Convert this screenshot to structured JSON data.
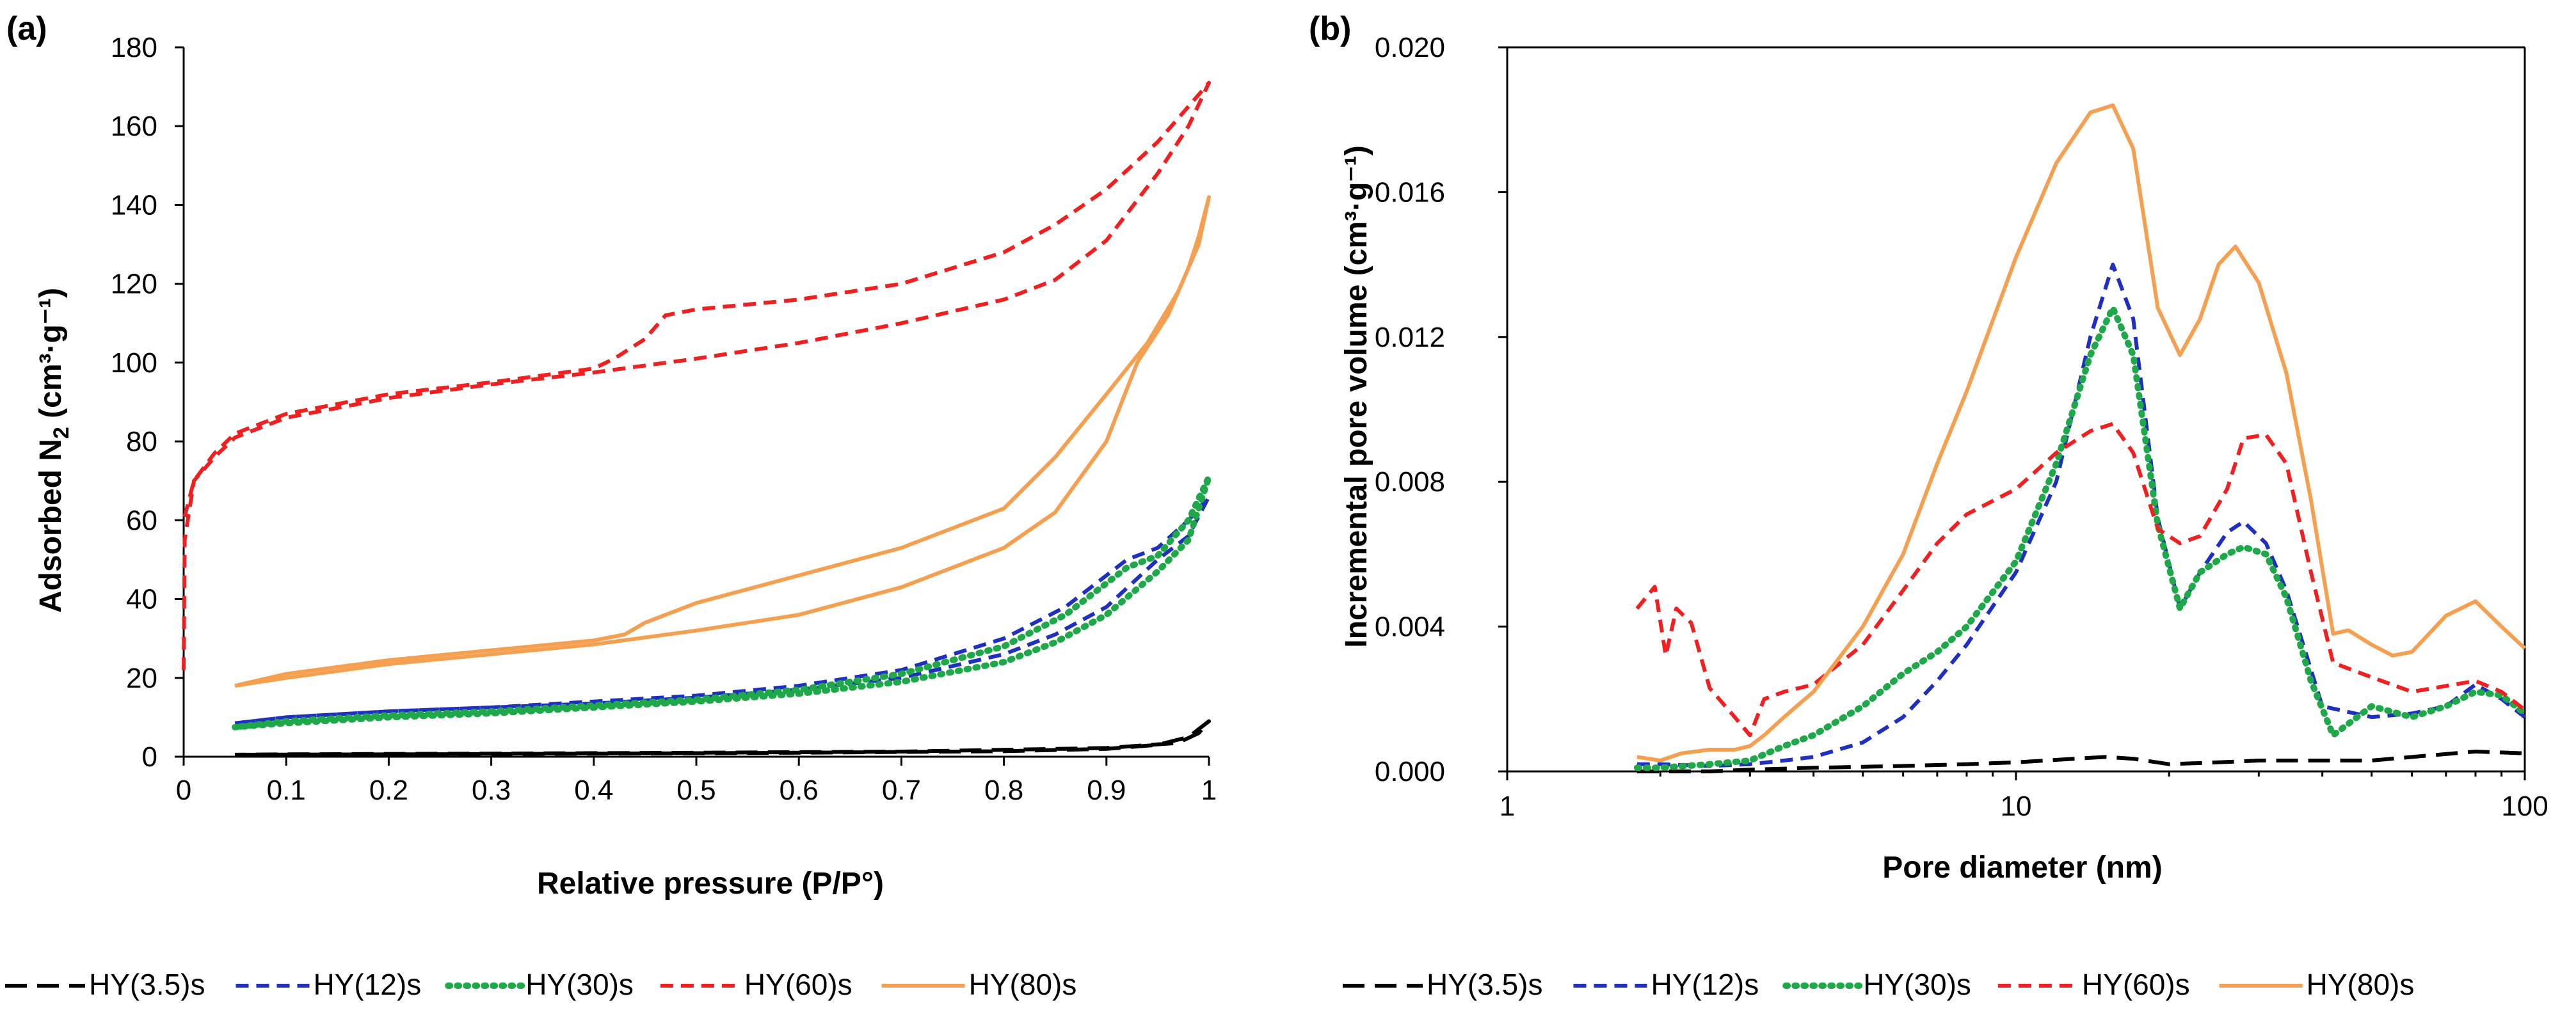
{
  "series_styles": [
    {
      "name": "HY(3.5)s",
      "color": "#000000",
      "dash": "long-dash"
    },
    {
      "name": "HY(12)s",
      "color": "#1f2fbf",
      "dash": "dash"
    },
    {
      "name": "HY(30)s",
      "color": "#1fa84a",
      "dash": "dot"
    },
    {
      "name": "HY(60)s",
      "color": "#f02020",
      "dash": "dash"
    },
    {
      "name": "HY(80)s",
      "color": "#f4a050",
      "dash": "solid"
    }
  ],
  "chart_data": [
    {
      "panel_label": "(a)",
      "type": "line",
      "title": "",
      "xlabel": "Relative pressure (P/P°)",
      "ylabel_main": "Adsorbed N",
      "ylabel_sub": "2",
      "ylabel_unit": " (cm³·g⁻¹)",
      "xlim": [
        0,
        1
      ],
      "ylim": [
        0,
        180
      ],
      "xticks": [
        0,
        0.1,
        0.2,
        0.3,
        0.4,
        0.5,
        0.6,
        0.7,
        0.8,
        0.9,
        1
      ],
      "xtick_labels": [
        "0",
        "0.1",
        "0.2",
        "0.3",
        "0.4",
        "0.5",
        "0.6",
        "0.7",
        "0.8",
        "0.9",
        "1"
      ],
      "yticks": [
        0,
        20,
        40,
        60,
        80,
        100,
        120,
        140,
        160,
        180
      ],
      "ytick_labels": [
        "0",
        "20",
        "40",
        "60",
        "80",
        "100",
        "120",
        "140",
        "160",
        "180"
      ],
      "legend_position": "bottom",
      "series": [
        {
          "name": "HY(3.5)s",
          "x": [
            0.05,
            0.2,
            0.4,
            0.6,
            0.8,
            0.9,
            0.95,
            0.98,
            0.99,
            1.0,
            0.99,
            0.97,
            0.9,
            0.7,
            0.5,
            0.3,
            0.1,
            0.05
          ],
          "y": [
            0.5,
            0.6,
            0.8,
            1.0,
            1.4,
            2.0,
            3.0,
            5.0,
            7.0,
            9.0,
            6.0,
            3.5,
            2.2,
            1.3,
            1.0,
            0.8,
            0.6,
            0.5
          ]
        },
        {
          "name": "HY(12)s",
          "x": [
            0.05,
            0.1,
            0.2,
            0.3,
            0.4,
            0.5,
            0.6,
            0.7,
            0.8,
            0.85,
            0.9,
            0.95,
            0.98,
            1.0,
            0.98,
            0.95,
            0.92,
            0.9,
            0.86,
            0.8,
            0.7,
            0.6,
            0.5,
            0.4,
            0.3,
            0.2,
            0.1,
            0.05
          ],
          "y": [
            8.5,
            10,
            11.5,
            12.5,
            13.5,
            15,
            17,
            20,
            26,
            31,
            38,
            50,
            56,
            66,
            60,
            53,
            50,
            46,
            38,
            30,
            22,
            18,
            15.5,
            14,
            12.5,
            11.5,
            10,
            8.5
          ]
        },
        {
          "name": "HY(30)s",
          "x": [
            0.05,
            0.1,
            0.2,
            0.3,
            0.4,
            0.5,
            0.6,
            0.7,
            0.8,
            0.85,
            0.9,
            0.95,
            0.98,
            1.0,
            0.98,
            0.95,
            0.92,
            0.9,
            0.86,
            0.8,
            0.7,
            0.6,
            0.5,
            0.4,
            0.3,
            0.2,
            0.1,
            0.05
          ],
          "y": [
            7.5,
            8.5,
            10,
            11,
            12.5,
            14,
            16,
            19,
            24,
            29,
            36,
            47,
            55,
            71,
            60,
            51,
            48,
            44,
            36,
            28,
            21,
            17,
            14.5,
            13,
            11.5,
            10.5,
            9,
            7.5
          ]
        },
        {
          "name": "HY(60)s",
          "x": [
            0,
            0.001,
            0.01,
            0.03,
            0.05,
            0.1,
            0.2,
            0.3,
            0.4,
            0.5,
            0.6,
            0.7,
            0.8,
            0.85,
            0.9,
            0.95,
            0.98,
            1.0,
            0.98,
            0.95,
            0.9,
            0.85,
            0.8,
            0.7,
            0.6,
            0.5,
            0.47,
            0.45,
            0.42,
            0.4,
            0.3,
            0.2,
            0.1,
            0.05,
            0.03,
            0.01,
            0.0
          ],
          "y": [
            22,
            55,
            70,
            76,
            81,
            86,
            91,
            94.5,
            97.5,
            101,
            105,
            110,
            116,
            121,
            131,
            148,
            160,
            171,
            165,
            156,
            144,
            135,
            128,
            120,
            116,
            113.5,
            112,
            106,
            101,
            98.5,
            95,
            92,
            87,
            82,
            77,
            70,
            60
          ]
        },
        {
          "name": "HY(80)s",
          "x": [
            0.05,
            0.1,
            0.2,
            0.3,
            0.4,
            0.5,
            0.6,
            0.7,
            0.8,
            0.85,
            0.9,
            0.93,
            0.96,
            0.98,
            0.99,
            1.0,
            0.99,
            0.97,
            0.94,
            0.9,
            0.85,
            0.8,
            0.7,
            0.6,
            0.5,
            0.47,
            0.45,
            0.43,
            0.4,
            0.3,
            0.2,
            0.1,
            0.05
          ],
          "y": [
            18,
            20,
            23.5,
            26,
            28.5,
            32,
            36,
            43,
            53,
            62,
            80,
            100,
            112,
            124,
            132,
            142,
            130,
            118,
            105,
            92,
            76,
            63,
            53,
            46,
            39,
            36,
            34,
            31,
            29.5,
            27,
            24.5,
            21,
            18
          ]
        }
      ]
    },
    {
      "panel_label": "(b)",
      "type": "line",
      "title": "",
      "xscale": "log",
      "xlabel": "Pore diameter (nm)",
      "ylabel": "Incremental pore volume (cm³·g⁻¹)",
      "xlim": [
        1,
        100
      ],
      "ylim": [
        0,
        0.02
      ],
      "xticks": [
        1,
        10,
        100
      ],
      "xtick_labels": [
        "1",
        "10",
        "100"
      ],
      "yticks": [
        0,
        0.004,
        0.008,
        0.012,
        0.016,
        0.02
      ],
      "ytick_labels": [
        "0.000",
        "0.004",
        "0.008",
        "0.012",
        "0.016",
        "0.020"
      ],
      "legend_position": "bottom",
      "series": [
        {
          "name": "HY(3.5)s",
          "x": [
            1.8,
            2,
            2.5,
            3,
            4,
            6,
            8,
            10,
            13,
            15,
            17,
            20,
            25,
            30,
            40,
            50,
            60,
            80,
            100
          ],
          "y": [
            0.0,
            0.0,
            0.0,
            5e-05,
            0.0001,
            0.00015,
            0.0002,
            0.00025,
            0.00035,
            0.0004,
            0.00035,
            0.0002,
            0.00025,
            0.0003,
            0.0003,
            0.0003,
            0.0004,
            0.00055,
            0.0005
          ]
        },
        {
          "name": "HY(12)s",
          "x": [
            1.8,
            2,
            2.5,
            3,
            3.5,
            4,
            5,
            6,
            7,
            8,
            10,
            12,
            14,
            15.5,
            17,
            19,
            21,
            23,
            26,
            28,
            31,
            34,
            40,
            50,
            60,
            70,
            80,
            90,
            100
          ],
          "y": [
            0.0002,
            0.0002,
            0.00015,
            0.0002,
            0.0003,
            0.0004,
            0.0008,
            0.0015,
            0.0025,
            0.0035,
            0.0055,
            0.008,
            0.012,
            0.014,
            0.0125,
            0.007,
            0.0045,
            0.0055,
            0.0066,
            0.0069,
            0.0063,
            0.005,
            0.0018,
            0.0015,
            0.0016,
            0.0018,
            0.0024,
            0.002,
            0.0015
          ]
        },
        {
          "name": "HY(30)s",
          "x": [
            1.8,
            2,
            2.5,
            3,
            3.5,
            4,
            5,
            6,
            7,
            8,
            10,
            12,
            14,
            15.5,
            17,
            19,
            21,
            23,
            26,
            28,
            31,
            34,
            38,
            42,
            50,
            60,
            70,
            80,
            90,
            100
          ],
          "y": [
            0.0001,
            0.0001,
            0.0002,
            0.0003,
            0.0007,
            0.001,
            0.0018,
            0.0027,
            0.0033,
            0.004,
            0.0058,
            0.0085,
            0.0115,
            0.0128,
            0.0115,
            0.0068,
            0.0045,
            0.0055,
            0.006,
            0.0062,
            0.006,
            0.0048,
            0.0025,
            0.001,
            0.0018,
            0.0015,
            0.0018,
            0.0022,
            0.0021,
            0.0016
          ]
        },
        {
          "name": "HY(60)s",
          "x": [
            1.8,
            1.95,
            2.05,
            2.15,
            2.3,
            2.5,
            2.8,
            3.0,
            3.2,
            3.5,
            4,
            5,
            6,
            7,
            8,
            10,
            12,
            14,
            15.5,
            17,
            19,
            21,
            23,
            26,
            28,
            31,
            34,
            38,
            42,
            50,
            60,
            80,
            90,
            100
          ],
          "y": [
            0.0045,
            0.0051,
            0.0032,
            0.0045,
            0.0041,
            0.0023,
            0.0015,
            0.001,
            0.002,
            0.0022,
            0.0024,
            0.0035,
            0.005,
            0.0063,
            0.0071,
            0.0078,
            0.0088,
            0.0094,
            0.0096,
            0.0088,
            0.0067,
            0.0063,
            0.0065,
            0.0078,
            0.0092,
            0.0093,
            0.0085,
            0.0055,
            0.003,
            0.0026,
            0.0022,
            0.0025,
            0.0022,
            0.0017
          ]
        },
        {
          "name": "HY(80)s",
          "x": [
            1.8,
            2,
            2.2,
            2.5,
            2.8,
            3.0,
            3.2,
            3.5,
            4,
            5,
            6,
            7,
            8,
            10,
            12,
            14,
            15.5,
            17,
            19,
            21,
            23,
            25,
            27,
            30,
            34,
            38,
            42,
            45,
            50,
            55,
            60,
            70,
            80,
            90,
            100
          ],
          "y": [
            0.0004,
            0.0003,
            0.0005,
            0.0006,
            0.0006,
            0.0007,
            0.001,
            0.0015,
            0.0022,
            0.004,
            0.006,
            0.0085,
            0.0105,
            0.0142,
            0.0168,
            0.0182,
            0.0184,
            0.0172,
            0.0128,
            0.0115,
            0.0125,
            0.014,
            0.0145,
            0.0135,
            0.011,
            0.0075,
            0.0038,
            0.0039,
            0.0035,
            0.0032,
            0.0033,
            0.0043,
            0.0047,
            0.004,
            0.0034
          ]
        }
      ]
    }
  ]
}
